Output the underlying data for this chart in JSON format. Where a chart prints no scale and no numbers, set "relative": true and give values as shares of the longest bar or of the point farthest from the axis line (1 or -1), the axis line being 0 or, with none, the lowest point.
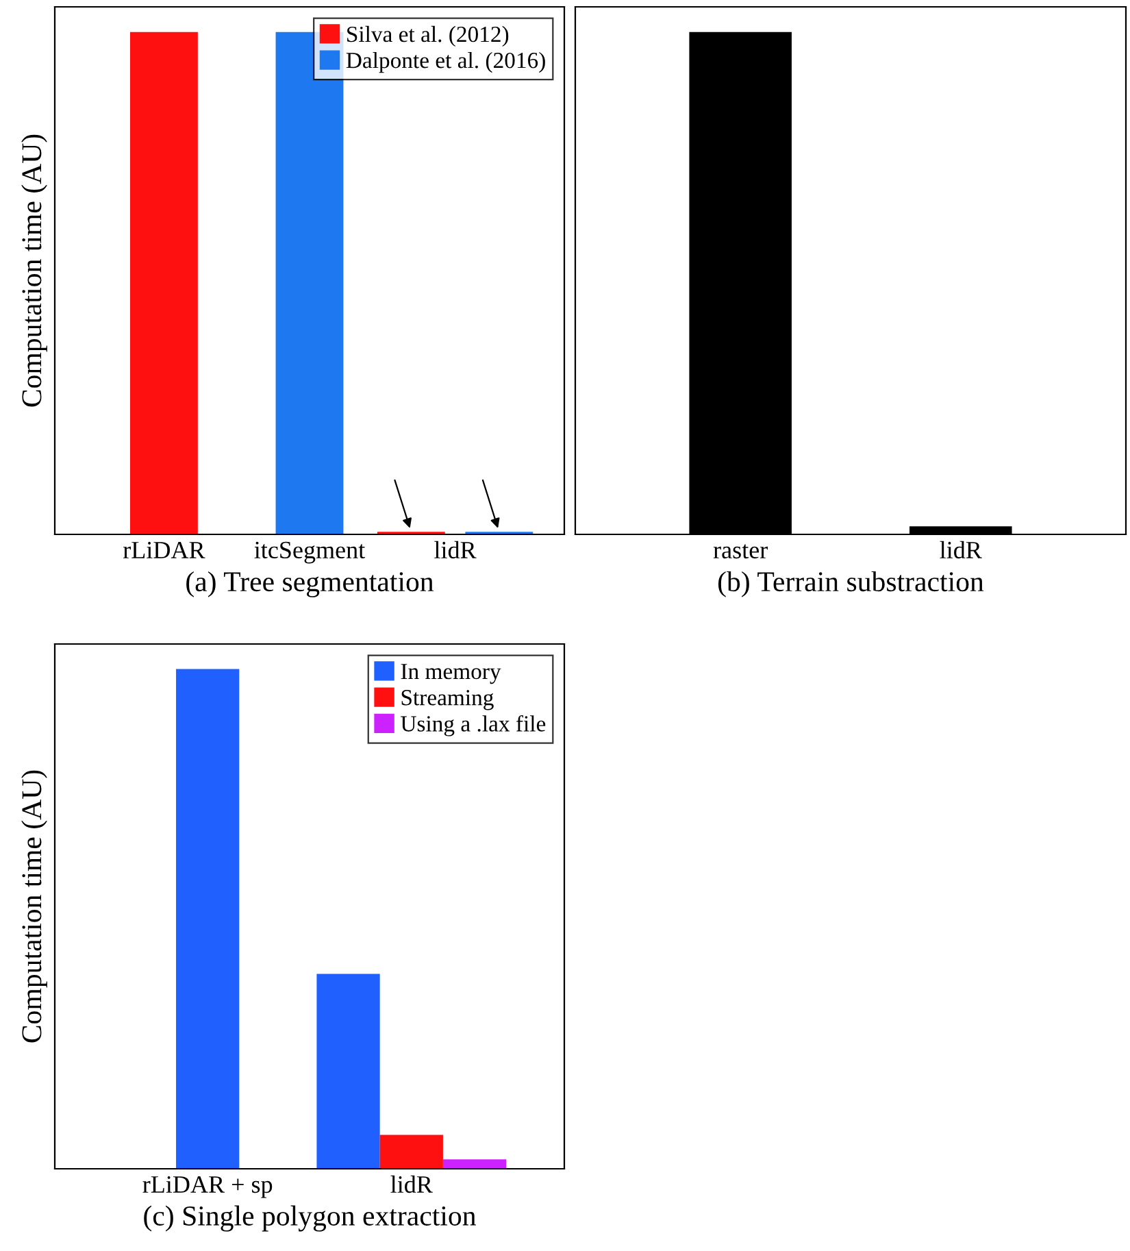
{
  "chart_data": [
    {
      "type": "bar",
      "title": "(a) Tree segmentation",
      "ylabel": "Computation time (AU)",
      "relative": true,
      "categories": [
        "rLiDAR",
        "itcSegment",
        "lidR"
      ],
      "legend": "top right",
      "series": [
        {
          "name": "Silva et al. (2012)",
          "color": "#ff1010",
          "values": [
            1,
            null,
            0.005
          ]
        },
        {
          "name": "Dalponte et al. (2016)",
          "color": "#1e78f0",
          "values": [
            null,
            1,
            0.005
          ]
        }
      ]
    },
    {
      "type": "bar",
      "title": "(b) Terrain substraction",
      "relative": true,
      "categories": [
        "raster",
        "lidR"
      ],
      "color": "#000000",
      "values": [
        1,
        0.016
      ]
    },
    {
      "type": "bar",
      "title": "(c) Single polygon extraction",
      "ylabel": "Computation time (AU)",
      "relative": true,
      "categories": [
        "rLiDAR + sp",
        "lidR"
      ],
      "legend": "top right",
      "series": [
        {
          "name": "In memory",
          "color": "#2060ff",
          "values": [
            1,
            0.39
          ]
        },
        {
          "name": "Streaming",
          "color": "#ff1010",
          "values": [
            null,
            0.068
          ]
        },
        {
          "name": "Using a .lax file",
          "color": "#cc22ff",
          "values": [
            null,
            0.019
          ]
        }
      ]
    }
  ]
}
